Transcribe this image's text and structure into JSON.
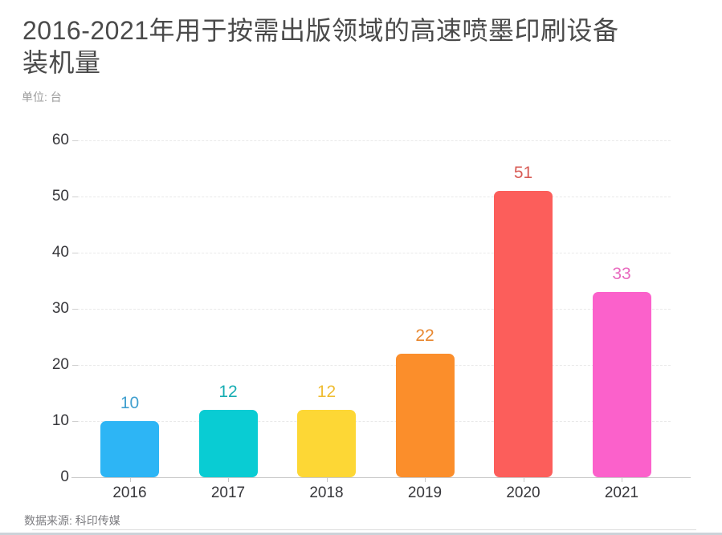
{
  "header": {
    "title_line1": "2016-2021年用于按需出版领域的高速喷墨印刷设备",
    "title_line2": "装机量",
    "unit_label": "单位: 台"
  },
  "footer": {
    "source": "数据来源: 科印传媒"
  },
  "chart_data": {
    "type": "bar",
    "title": "2016-2021年用于按需出版领域的高速喷墨印刷设备装机量",
    "unit": "台",
    "categories": [
      "2016",
      "2017",
      "2018",
      "2019",
      "2020",
      "2021"
    ],
    "values": [
      10,
      12,
      12,
      22,
      51,
      33
    ],
    "bar_colors": [
      "#2DB5F5",
      "#09CCD3",
      "#FDD735",
      "#FB8E2B",
      "#FC5E5B",
      "#FB61CB"
    ],
    "value_label_colors": [
      "#41A0CF",
      "#16ADB3",
      "#EFBD33",
      "#E8872F",
      "#D85B55",
      "#E869BE"
    ],
    "xlabel": "",
    "ylabel": "",
    "ylim": [
      0,
      60
    ],
    "yticks": [
      0,
      10,
      20,
      30,
      40,
      50,
      60
    ],
    "grid": "horizontal-dashed",
    "legend": "none",
    "source": "数据来源: 科印传媒"
  }
}
